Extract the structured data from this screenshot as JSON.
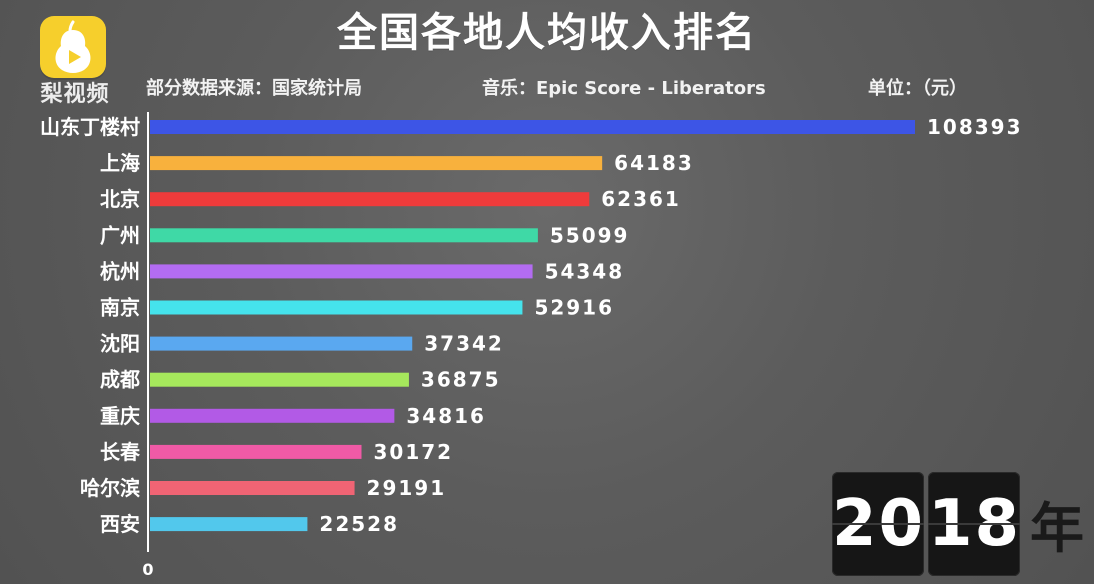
{
  "brand": {
    "name": "梨视频",
    "icon": "pear-play-icon",
    "icon_color": "#f6cf2c"
  },
  "title": "全国各地人均收入排名",
  "subtitles": {
    "source": "部分数据来源：国家统计局",
    "music": "音乐：Epic Score - Liberators",
    "unit": "单位：（元）"
  },
  "year": {
    "first": "20",
    "second": "18",
    "suffix": "年"
  },
  "chart_data": {
    "type": "bar",
    "orientation": "horizontal",
    "categories": [
      "山东丁楼村",
      "上海",
      "北京",
      "广州",
      "杭州",
      "南京",
      "沈阳",
      "成都",
      "重庆",
      "长春",
      "哈尔滨",
      "西安"
    ],
    "values": [
      108393,
      64183,
      62361,
      55099,
      54348,
      52916,
      37342,
      36875,
      34816,
      30172,
      29191,
      22528
    ],
    "colors": [
      "#3d55e6",
      "#f8b13d",
      "#ef3b3b",
      "#3fd9a6",
      "#b36cf2",
      "#45e3ec",
      "#5aa8f0",
      "#a6e85c",
      "#b25ae6",
      "#f05aa6",
      "#f06474",
      "#52c8ec"
    ],
    "x_axis_tick": "0",
    "xlim": [
      0,
      108393
    ],
    "grid": false,
    "legend": "none"
  }
}
